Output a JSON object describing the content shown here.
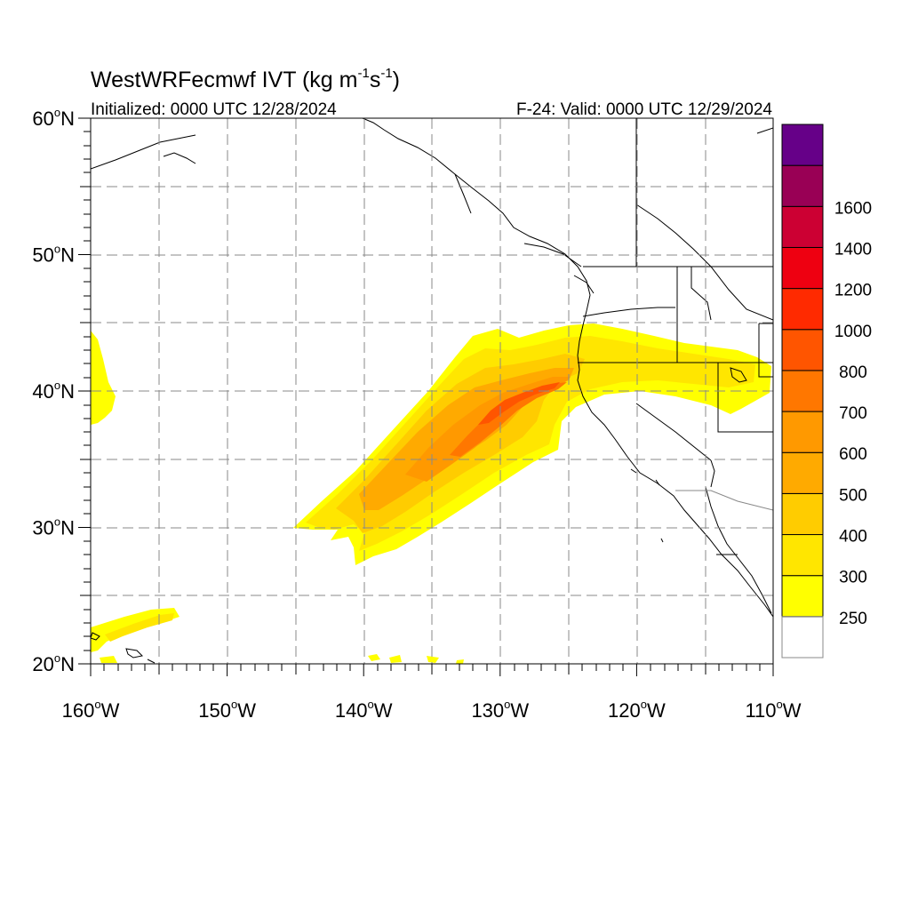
{
  "title": {
    "main": "WestWRFecmwf IVT (kg m",
    "exp1": "-1",
    "mid": "s",
    "exp2": "-1",
    "close": ")"
  },
  "subtitle_left": "Initialized: 0000 UTC 12/28/2024",
  "subtitle_right": "F-24: Valid: 0000 UTC 12/29/2024",
  "map": {
    "lon_range": [
      -160,
      -110
    ],
    "lat_range": [
      20,
      60
    ],
    "grid_lines_dashed": true,
    "lon_ticks": [
      {
        "lon": -160,
        "num": "160",
        "deg": "o",
        "hemi": "W"
      },
      {
        "lon": -150,
        "num": "150",
        "deg": "o",
        "hemi": "W"
      },
      {
        "lon": -140,
        "num": "140",
        "deg": "o",
        "hemi": "W"
      },
      {
        "lon": -130,
        "num": "130",
        "deg": "o",
        "hemi": "W"
      },
      {
        "lon": -120,
        "num": "120",
        "deg": "o",
        "hemi": "W"
      },
      {
        "lon": -110,
        "num": "110",
        "deg": "o",
        "hemi": "W"
      }
    ],
    "lat_ticks": [
      {
        "lat": 60,
        "num": "60",
        "deg": "o",
        "hemi": "N"
      },
      {
        "lat": 50,
        "num": "50",
        "deg": "o",
        "hemi": "N"
      },
      {
        "lat": 40,
        "num": "40",
        "deg": "o",
        "hemi": "N"
      },
      {
        "lat": 30,
        "num": "30",
        "deg": "o",
        "hemi": "N"
      },
      {
        "lat": 20,
        "num": "20",
        "deg": "o",
        "hemi": "N"
      }
    ]
  },
  "colorbar": {
    "colors": [
      "#ffffff",
      "#ffff00",
      "#ffe600",
      "#ffcc00",
      "#ffaa00",
      "#ff9900",
      "#ff7700",
      "#ff5500",
      "#ff2a00",
      "#ee0011",
      "#cc0033",
      "#990055",
      "#660088"
    ],
    "labels": [
      "250",
      "300",
      "400",
      "500",
      "600",
      "700",
      "800",
      "1000",
      "1200",
      "1400",
      "1600"
    ]
  },
  "chart_data": {
    "type": "heatmap",
    "title": "WestWRFecmwf IVT (kg m-1s-1)",
    "field": "Integrated Vapor Transport",
    "units": "kg m-1 s-1",
    "contour_levels": [
      250,
      300,
      400,
      500,
      600,
      700,
      800,
      1000,
      1200,
      1400,
      1600
    ],
    "features": [
      {
        "name": "atmospheric-river-core",
        "max_level": 800,
        "axis_lon": [
          -135,
          -131,
          -129,
          -126,
          -124
        ],
        "axis_lat": [
          32,
          36,
          39.2,
          40.5,
          40.8
        ]
      },
      {
        "name": "ivt-plume-250",
        "lon_extent": [
          -145,
          -112
        ],
        "lat_extent": [
          28,
          44.5
        ]
      },
      {
        "name": "ivt-patch-west",
        "lon_extent": [
          -160,
          -158
        ],
        "lat_extent": [
          38,
          44.5
        ]
      },
      {
        "name": "ivt-patch-hawaii",
        "lon_extent": [
          -160,
          -154
        ],
        "lat_extent": [
          20,
          24
        ]
      }
    ]
  }
}
